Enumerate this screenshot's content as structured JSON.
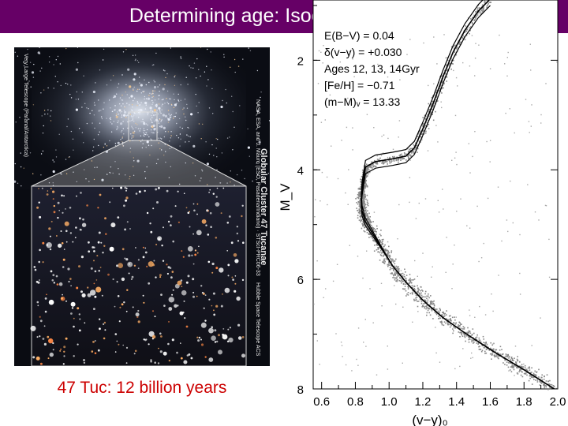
{
  "slide": {
    "title": "Determining age: Isochrone Fitting",
    "caption": "47 Tuc: 12 billion years",
    "accent_color": "#660066",
    "caption_color": "#cc0000"
  },
  "photo": {
    "credit_left": "Very Large Telescope (Paranal/Antarctica)",
    "credit_top": "NASA, ESA, and J. Mauro (ESO, Pasadena/Indiano) · STScI-PRC06-33",
    "credit_title": "Globular Cluster 47 Tucanae",
    "credit_bottom": "Hubble Space Telescope ACS"
  },
  "chart_data": {
    "type": "scatter",
    "xlabel": "(v−y)₀",
    "ylabel": "M_V",
    "xlim": [
      0.55,
      2.0
    ],
    "ylim": [
      8.0,
      0.9
    ],
    "xticks": [
      "0.6",
      "0.8",
      "1.0",
      "1.2",
      "1.4",
      "1.6",
      "1.8",
      "2.0"
    ],
    "yticks": [
      "2",
      "4",
      "6",
      "8"
    ],
    "annotations": [
      "E(B−V) = 0.04",
      "δ(v−y) = +0.030",
      "Ages 12, 13, 14Gyr",
      "[Fe/H] = −0.71",
      "(m−M)ᵥ = 13.33"
    ],
    "isochrone_ages_gyr": [
      12,
      13,
      14
    ],
    "isochrone_shape": [
      [
        0.86,
        3.95
      ],
      [
        0.85,
        4.15
      ],
      [
        0.84,
        4.35
      ],
      [
        0.835,
        4.55
      ],
      [
        0.84,
        4.75
      ],
      [
        0.86,
        4.95
      ],
      [
        0.9,
        5.15
      ],
      [
        0.96,
        5.45
      ],
      [
        1.02,
        5.75
      ],
      [
        1.1,
        6.05
      ],
      [
        1.2,
        6.38
      ],
      [
        1.32,
        6.7
      ],
      [
        1.46,
        7.0
      ],
      [
        1.62,
        7.32
      ],
      [
        1.8,
        7.65
      ],
      [
        1.98,
        8.0
      ]
    ],
    "isochrone_subgiant": [
      [
        0.86,
        3.95
      ],
      [
        0.92,
        3.85
      ],
      [
        1.02,
        3.8
      ],
      [
        1.1,
        3.75
      ],
      [
        1.15,
        3.6
      ],
      [
        1.2,
        3.25
      ],
      [
        1.26,
        2.8
      ],
      [
        1.32,
        2.3
      ],
      [
        1.38,
        1.85
      ],
      [
        1.45,
        1.45
      ],
      [
        1.53,
        1.1
      ],
      [
        1.6,
        0.88
      ]
    ],
    "isochrone_offsets": [
      -0.12,
      0.0,
      0.12
    ],
    "data_color": "#888888",
    "isochrone_color": "#000000",
    "points_drawn": 2200,
    "grid": false
  }
}
